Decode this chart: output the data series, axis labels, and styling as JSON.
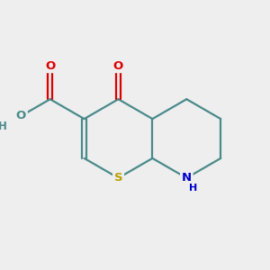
{
  "background_color": "#eeeeee",
  "bond_color": "#4a8a8a",
  "bond_width": 1.6,
  "S_color": "#b8a000",
  "N_color": "#0000cc",
  "O_red_color": "#dd0000",
  "O_teal_color": "#4a8a8a",
  "H_color": "#4a8a8a",
  "figsize": [
    3.0,
    3.0
  ],
  "dpi": 100,
  "xlim": [
    1.5,
    8.5
  ],
  "ylim": [
    2.0,
    9.0
  ]
}
